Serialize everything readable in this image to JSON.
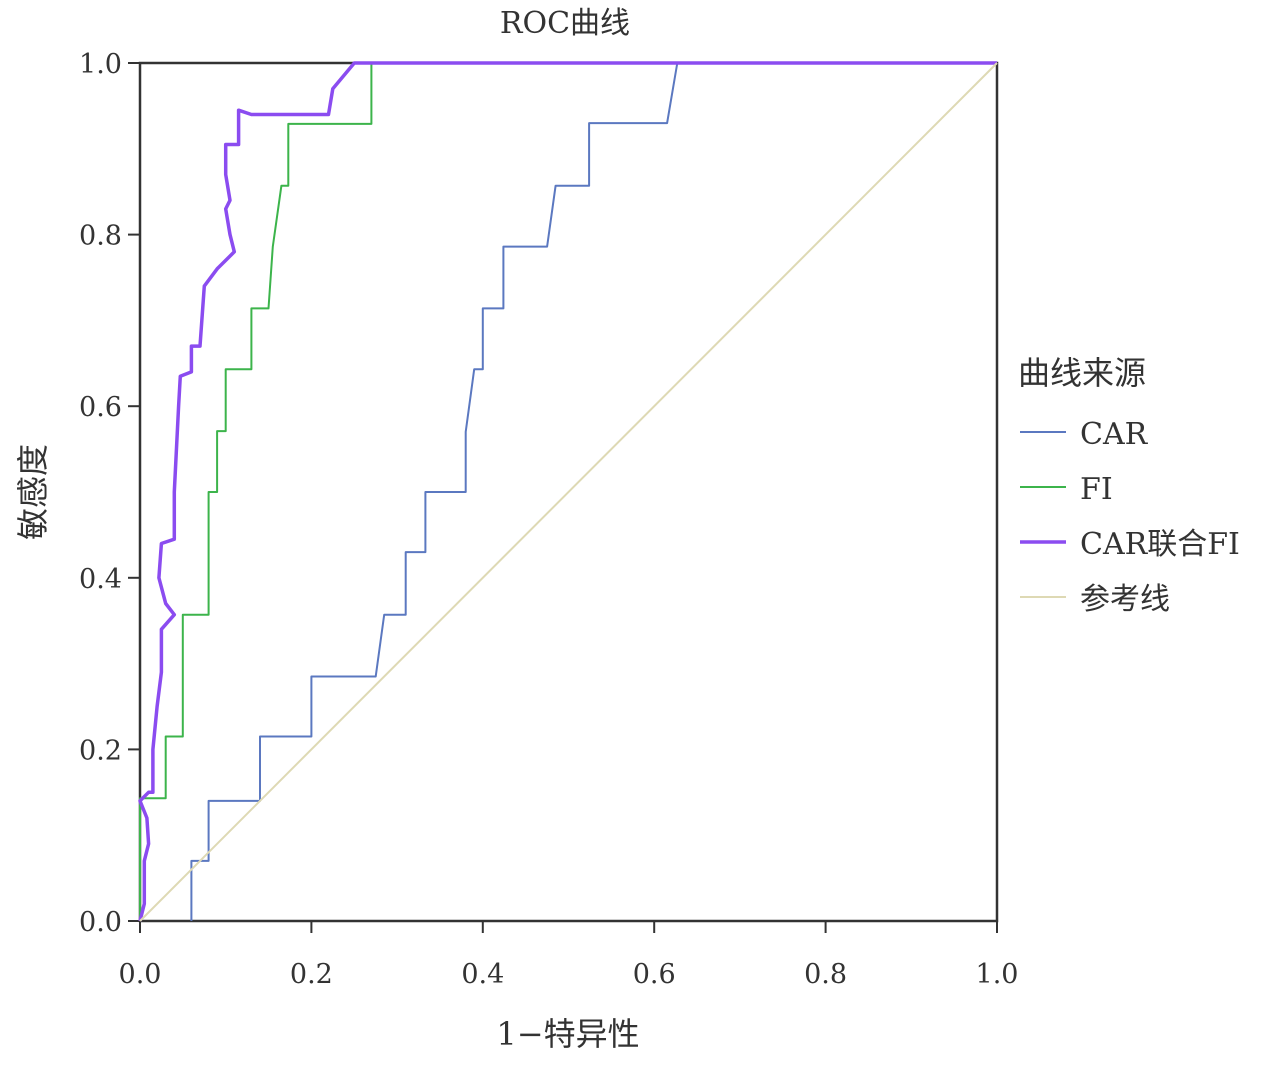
{
  "chart_data": {
    "type": "line",
    "title": "ROC曲线",
    "xlabel": "1−特异性",
    "ylabel": "敏感度",
    "xlim": [
      0,
      1
    ],
    "ylim": [
      0,
      1
    ],
    "xticks": [
      "0.0",
      "0.2",
      "0.4",
      "0.6",
      "0.8",
      "1.0"
    ],
    "yticks": [
      "0.0",
      "0.2",
      "0.4",
      "0.6",
      "0.8",
      "1.0"
    ],
    "grid": false,
    "legend": {
      "title": "曲线来源",
      "position": "right"
    },
    "series": [
      {
        "name": "CAR",
        "color": "#5b78c0",
        "points": [
          [
            0.06,
            0
          ],
          [
            0.06,
            0.07
          ],
          [
            0.08,
            0.07
          ],
          [
            0.08,
            0.14
          ],
          [
            0.14,
            0.14
          ],
          [
            0.14,
            0.215
          ],
          [
            0.2,
            0.215
          ],
          [
            0.2,
            0.285
          ],
          [
            0.275,
            0.285
          ],
          [
            0.285,
            0.357
          ],
          [
            0.31,
            0.357
          ],
          [
            0.31,
            0.43
          ],
          [
            0.333,
            0.43
          ],
          [
            0.333,
            0.5
          ],
          [
            0.38,
            0.5
          ],
          [
            0.38,
            0.57
          ],
          [
            0.39,
            0.643
          ],
          [
            0.4,
            0.643
          ],
          [
            0.4,
            0.714
          ],
          [
            0.424,
            0.714
          ],
          [
            0.424,
            0.786
          ],
          [
            0.475,
            0.786
          ],
          [
            0.485,
            0.857
          ],
          [
            0.524,
            0.857
          ],
          [
            0.524,
            0.93
          ],
          [
            0.615,
            0.93
          ],
          [
            0.627,
            1.0
          ],
          [
            1.0,
            1.0
          ]
        ]
      },
      {
        "name": "FI",
        "color": "#3cb44b",
        "points": [
          [
            0,
            0
          ],
          [
            0,
            0.143
          ],
          [
            0.03,
            0.143
          ],
          [
            0.03,
            0.215
          ],
          [
            0.05,
            0.215
          ],
          [
            0.05,
            0.357
          ],
          [
            0.08,
            0.357
          ],
          [
            0.08,
            0.5
          ],
          [
            0.09,
            0.5
          ],
          [
            0.09,
            0.571
          ],
          [
            0.1,
            0.571
          ],
          [
            0.1,
            0.643
          ],
          [
            0.13,
            0.643
          ],
          [
            0.13,
            0.714
          ],
          [
            0.15,
            0.714
          ],
          [
            0.155,
            0.786
          ],
          [
            0.165,
            0.857
          ],
          [
            0.173,
            0.857
          ],
          [
            0.173,
            0.929
          ],
          [
            0.27,
            0.929
          ],
          [
            0.27,
            1.0
          ],
          [
            1.0,
            1.0
          ]
        ]
      },
      {
        "name": "CAR联合FI",
        "color": "#8b4cf0",
        "points": [
          [
            0,
            0
          ],
          [
            0.005,
            0.02
          ],
          [
            0.005,
            0.07
          ],
          [
            0.01,
            0.09
          ],
          [
            0.008,
            0.12
          ],
          [
            0,
            0.14
          ],
          [
            0.01,
            0.15
          ],
          [
            0.015,
            0.15
          ],
          [
            0.015,
            0.2
          ],
          [
            0.02,
            0.25
          ],
          [
            0.025,
            0.29
          ],
          [
            0.025,
            0.34
          ],
          [
            0.04,
            0.357
          ],
          [
            0.03,
            0.37
          ],
          [
            0.022,
            0.4
          ],
          [
            0.025,
            0.44
          ],
          [
            0.04,
            0.445
          ],
          [
            0.04,
            0.5
          ],
          [
            0.045,
            0.6
          ],
          [
            0.047,
            0.635
          ],
          [
            0.06,
            0.64
          ],
          [
            0.06,
            0.67
          ],
          [
            0.07,
            0.67
          ],
          [
            0.075,
            0.74
          ],
          [
            0.09,
            0.76
          ],
          [
            0.11,
            0.78
          ],
          [
            0.105,
            0.8
          ],
          [
            0.1,
            0.83
          ],
          [
            0.105,
            0.84
          ],
          [
            0.1,
            0.87
          ],
          [
            0.1,
            0.905
          ],
          [
            0.115,
            0.905
          ],
          [
            0.115,
            0.945
          ],
          [
            0.13,
            0.94
          ],
          [
            0.22,
            0.94
          ],
          [
            0.225,
            0.97
          ],
          [
            0.25,
            1.0
          ],
          [
            1.0,
            1.0
          ]
        ]
      },
      {
        "name": "参考线",
        "color": "#ded9b4",
        "points": [
          [
            0,
            0
          ],
          [
            1,
            1
          ]
        ]
      }
    ]
  }
}
